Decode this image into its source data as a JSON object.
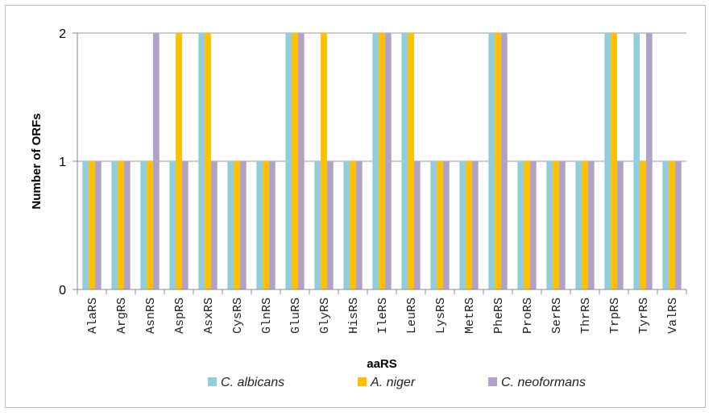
{
  "chart_data": {
    "type": "bar",
    "title": "",
    "xlabel": "aaRS",
    "ylabel": "Number of ORFs",
    "ylim": [
      0,
      2
    ],
    "yticks": [
      0,
      1,
      2
    ],
    "grid": true,
    "legend_position": "bottom",
    "categories": [
      "AlaRS",
      "ArgRS",
      "AsnRS",
      "AspRS",
      "AsxRS",
      "CysRS",
      "GlnRS",
      "GluRS",
      "GlyRS",
      "HisRS",
      "IleRS",
      "LeuRS",
      "LysRS",
      "MetRS",
      "PheRS",
      "ProRS",
      "SerRS",
      "ThrRS",
      "TrpRS",
      "TyrRS",
      "ValRS"
    ],
    "series": [
      {
        "name": "C. albicans",
        "color": "#92cddc",
        "values": [
          1,
          1,
          1,
          1,
          2,
          1,
          1,
          2,
          1,
          1,
          2,
          2,
          1,
          1,
          2,
          1,
          1,
          1,
          2,
          2,
          1
        ]
      },
      {
        "name": "A. niger",
        "color": "#ffc000",
        "values": [
          1,
          1,
          1,
          2,
          2,
          1,
          1,
          2,
          2,
          1,
          2,
          2,
          1,
          1,
          2,
          1,
          1,
          1,
          2,
          1,
          1
        ]
      },
      {
        "name": "C. neoformans",
        "color": "#b3a2c7",
        "values": [
          1,
          1,
          2,
          1,
          1,
          1,
          1,
          2,
          1,
          1,
          2,
          1,
          1,
          1,
          2,
          1,
          1,
          1,
          1,
          2,
          1
        ]
      }
    ]
  }
}
